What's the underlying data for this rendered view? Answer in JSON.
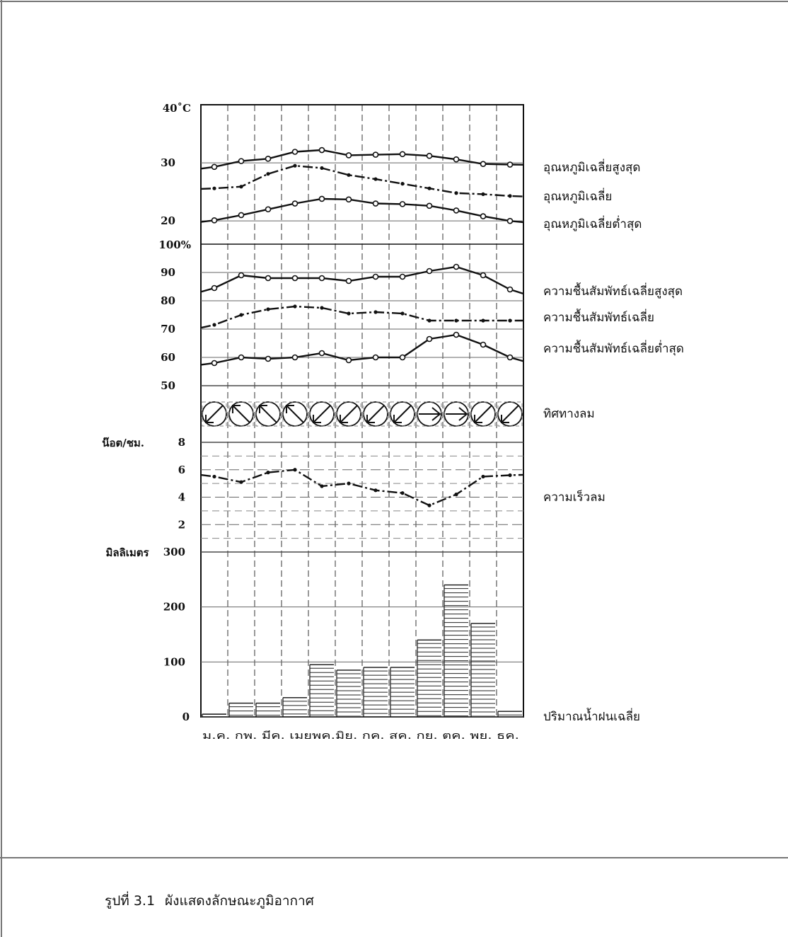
{
  "caption": {
    "number": "รูปที่ 3.1",
    "text": "ผังแสดงลักษณะภูมิอากาศ"
  },
  "chart_data": {
    "type": "line",
    "months": [
      "ม.ค.",
      "กพ.",
      "มีค.",
      "เมย",
      "พค.",
      "มิย.",
      "กค.",
      "สค.",
      "กย.",
      "ตค.",
      "พย.",
      "ธค."
    ],
    "month_axis_text": "ม.ค. กพ. มีค. เมยพค.มิย. กค. สค. กย. ตค. พย. ธค.",
    "temperature": {
      "unit_label": "40˚C",
      "ticks": [
        {
          "v": 30,
          "t": "30"
        },
        {
          "v": 20,
          "t": "20"
        }
      ],
      "ylim": [
        16,
        40
      ],
      "series": [
        {
          "name": "อุณหภูมิเฉลี่ยสูงสุด",
          "style": "circles",
          "values": [
            29.3,
            30.3,
            30.7,
            31.9,
            32.2,
            31.3,
            31.4,
            31.5,
            31.2,
            30.6,
            29.8,
            29.7
          ]
        },
        {
          "name": "อุณหภูมิเฉลี่ย",
          "style": "dashdot",
          "values": [
            25.6,
            25.9,
            28.1,
            29.5,
            29.1,
            27.9,
            27.2,
            26.4,
            25.6,
            24.8,
            24.6,
            24.3
          ]
        },
        {
          "name": "อุณหภูมิเฉลี่ยต่ำสุด",
          "style": "circles",
          "values": [
            20.1,
            21.0,
            22.0,
            23.0,
            23.8,
            23.7,
            23.0,
            22.9,
            22.6,
            21.8,
            20.8,
            20.0
          ]
        }
      ]
    },
    "humidity": {
      "unit_label": "100%",
      "ticks": [
        {
          "v": 90,
          "t": "90"
        },
        {
          "v": 80,
          "t": "80"
        },
        {
          "v": 70,
          "t": "70"
        },
        {
          "v": 60,
          "t": "60"
        },
        {
          "v": 50,
          "t": "50"
        }
      ],
      "ylim": [
        50,
        100
      ],
      "series": [
        {
          "name": "ความชื้นสัมพัทธ์เฉลี่ยสูงสุด",
          "style": "circles",
          "values": [
            84.5,
            89,
            88,
            88,
            88,
            87,
            88.5,
            88.5,
            90.5,
            92,
            89,
            84
          ]
        },
        {
          "name": "ความชื้นสัมพัทธ์เฉลี่ย",
          "style": "dashdot",
          "values": [
            71.5,
            75,
            77,
            78,
            77.5,
            75.5,
            76,
            75.5,
            73,
            73,
            73,
            73
          ]
        },
        {
          "name": "ความชื้นสัมพัทธ์เฉลี่ยต่ำสุด",
          "style": "circles",
          "values": [
            58,
            60,
            59.5,
            60,
            61.5,
            59,
            60,
            60,
            66.5,
            68,
            64.5,
            60
          ]
        }
      ]
    },
    "wind_direction": {
      "label": "ทิศทางลม",
      "glyph": [
        "slash",
        "backslash",
        "backslash",
        "backslash",
        "slash",
        "slash",
        "slash",
        "slash",
        "arrow",
        "arrow",
        "slash",
        "slash"
      ]
    },
    "wind_speed": {
      "unit_label": "น๊อต/ชม.",
      "ticks": [
        {
          "v": 8,
          "t": "8"
        },
        {
          "v": 6,
          "t": "6"
        },
        {
          "v": 4,
          "t": "4"
        },
        {
          "v": 2,
          "t": "2"
        }
      ],
      "ylim": [
        0,
        8
      ],
      "series": [
        {
          "name": "ความเร็วลม",
          "style": "dashdot",
          "values": [
            5.5,
            5.1,
            5.8,
            6.0,
            4.8,
            5.0,
            4.5,
            4.3,
            3.4,
            4.2,
            5.5,
            5.6
          ]
        }
      ]
    },
    "rainfall": {
      "unit_label": "มิลลิเมตร",
      "ticks": [
        {
          "v": 300,
          "t": "300"
        },
        {
          "v": 200,
          "t": "200"
        },
        {
          "v": 100,
          "t": "100"
        },
        {
          "v": 0,
          "t": "0"
        }
      ],
      "ylim": [
        0,
        300
      ],
      "label": "ปริมาณน้ำฝนเฉลี่ย",
      "values": [
        5,
        25,
        25,
        35,
        95,
        85,
        90,
        90,
        140,
        240,
        170,
        10
      ]
    }
  }
}
